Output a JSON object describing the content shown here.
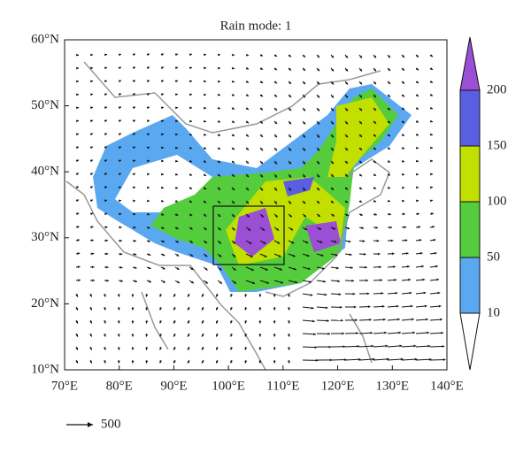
{
  "title": "Rain mode: 1",
  "map": {
    "xlim": [
      70,
      140
    ],
    "ylim": [
      10,
      60
    ],
    "xticks": [
      {
        "value": 70,
        "label": "70°E"
      },
      {
        "value": 80,
        "label": "80°E"
      },
      {
        "value": 90,
        "label": "90°E"
      },
      {
        "value": 100,
        "label": "100°E"
      },
      {
        "value": 110,
        "label": "110°E"
      },
      {
        "value": 120,
        "label": "120°E"
      },
      {
        "value": 130,
        "label": "130°E"
      },
      {
        "value": 140,
        "label": "140°E"
      }
    ],
    "yticks": [
      {
        "value": 10,
        "label": "10°N"
      },
      {
        "value": 20,
        "label": "20°N"
      },
      {
        "value": 30,
        "label": "30°N"
      },
      {
        "value": 40,
        "label": "40°N"
      },
      {
        "value": 50,
        "label": "50°N"
      },
      {
        "value": 60,
        "label": "60°N"
      }
    ]
  },
  "colorbar": {
    "levels": [
      10,
      50,
      100,
      150,
      200
    ],
    "colors": [
      "#ffffff",
      "#5aa8f0",
      "#55cc3c",
      "#c2df00",
      "#5a5ee0",
      "#9a4fd4"
    ]
  },
  "reference_vector": {
    "label": "500"
  }
}
